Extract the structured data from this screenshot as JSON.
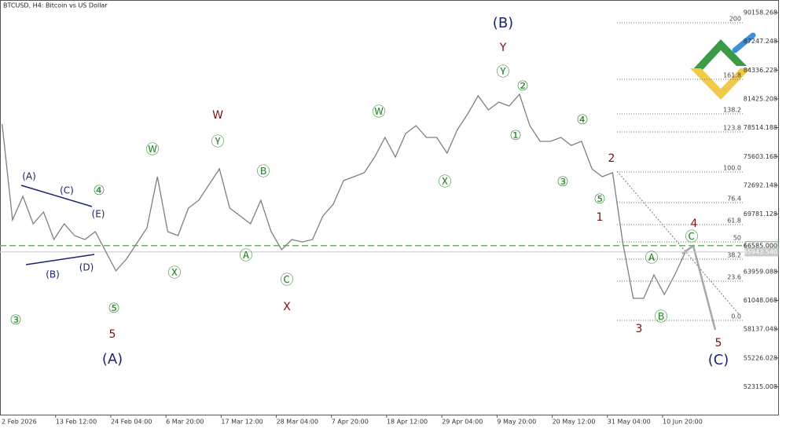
{
  "chart_data": {
    "type": "line",
    "title": "BTCUSD, H4:  Bitcoin vs US Dollar",
    "color": "#7f7f7f",
    "x": [
      "2026-02-03T04:00",
      "2026-02-05T04:00",
      "2026-02-07T04:00",
      "2026-02-09T04:00",
      "2026-02-11T04:00",
      "2026-02-13T04:00",
      "2026-02-15T04:00",
      "2026-02-17T04:00",
      "2026-02-19T04:00",
      "2026-02-21T04:00",
      "2026-02-23T04:00",
      "2026-02-25T04:00",
      "2026-02-27T04:00",
      "2026-03-01T04:00",
      "2026-03-03T04:00",
      "2026-03-05T04:00",
      "2026-03-07T04:00",
      "2026-03-09T04:00",
      "2026-03-11T04:00",
      "2026-03-13T04:00",
      "2026-03-15T04:00",
      "2026-03-17T04:00",
      "2026-03-19T04:00",
      "2026-03-21T04:00",
      "2026-03-23T04:00",
      "2026-03-25T04:00",
      "2026-03-27T04:00",
      "2026-03-29T04:00",
      "2026-03-31T04:00",
      "2026-04-02T04:00",
      "2026-04-04T04:00",
      "2026-04-06T04:00",
      "2026-04-08T04:00",
      "2026-04-10T04:00",
      "2026-04-12T04:00",
      "2026-04-14T04:00",
      "2026-04-16T04:00",
      "2026-04-18T04:00",
      "2026-04-20T04:00",
      "2026-04-22T04:00",
      "2026-04-24T04:00",
      "2026-04-26T04:00",
      "2026-04-28T04:00",
      "2026-04-30T04:00",
      "2026-05-02T04:00",
      "2026-05-04T04:00",
      "2026-05-06T04:00",
      "2026-05-08T04:00",
      "2026-05-10T04:00",
      "2026-05-12T04:00",
      "2026-05-14T04:00",
      "2026-05-16T04:00",
      "2026-05-18T04:00",
      "2026-05-20T04:00",
      "2026-05-22T04:00",
      "2026-05-24T04:00",
      "2026-05-26T04:00",
      "2026-05-28T04:00",
      "2026-05-30T04:00",
      "2026-06-01T04:00",
      "2026-06-03T04:00",
      "2026-06-05T04:00",
      "2026-06-07T04:00",
      "2026-06-09T04:00",
      "2026-06-11T04:00",
      "2026-06-13T04:00",
      "2026-06-15T04:00"
    ],
    "values": [
      78880,
      69190,
      71570,
      68790,
      69980,
      67200,
      68790,
      67600,
      67200,
      68000,
      66010,
      64030,
      65220,
      66810,
      68390,
      73560,
      68000,
      67600,
      70380,
      71170,
      72760,
      74350,
      70380,
      69590,
      68790,
      71170,
      68000,
      66170,
      67200,
      66960,
      67200,
      69590,
      70780,
      73160,
      73560,
      73960,
      75540,
      77530,
      75540,
      77930,
      78720,
      77530,
      77530,
      75940,
      78320,
      79910,
      81740,
      80310,
      81100,
      80710,
      81900,
      78720,
      77130,
      77130,
      77530,
      76730,
      77130,
      74350,
      73560,
      73960,
      66810,
      61250,
      61250,
      63630,
      61640,
      63630,
      65850
    ],
    "xlim": [
      "2026-02-02T18:00",
      "2026-07-03T04:00"
    ],
    "ylim": [
      49490,
      91430
    ],
    "yticks": [
      90158.268,
      87247.248,
      84336.228,
      81425.208,
      78514.188,
      75603.168,
      72692.148,
      69781.128,
      63959.088,
      61048.068,
      58137.048,
      55226.028,
      52315.008
    ],
    "xticks": [
      {
        "value": "2026-02-02T00:00",
        "label": "2 Feb 2026"
      },
      {
        "value": "2026-02-13T12:00",
        "label": "13 Feb 12:00"
      },
      {
        "value": "2026-02-24T04:00",
        "label": "24 Feb 04:00"
      },
      {
        "value": "2026-03-06T20:00",
        "label": "6 Mar 20:00"
      },
      {
        "value": "2026-03-17T12:00",
        "label": "17 Mar 12:00"
      },
      {
        "value": "2026-03-28T04:00",
        "label": "28 Mar 04:00"
      },
      {
        "value": "2026-04-07T20:00",
        "label": "7 Apr 20:00"
      },
      {
        "value": "2026-04-18T12:00",
        "label": "18 Apr 12:00"
      },
      {
        "value": "2026-04-29T04:00",
        "label": "29 Apr 04:00"
      },
      {
        "value": "2026-05-09T20:00",
        "label": "9 May 20:00"
      },
      {
        "value": "2026-05-20T12:00",
        "label": "20 May 12:00"
      },
      {
        "value": "2026-05-31T04:00",
        "label": "31 May 04:00"
      },
      {
        "value": "2026-06-10T20:00",
        "label": "10 Jun 20:00"
      }
    ],
    "hlines": [
      {
        "value": 66585,
        "label": "66585.000",
        "color": "#6db36d"
      },
      {
        "value": 65943.54,
        "label": "65943.540",
        "color": "#c8c8c8"
      }
    ],
    "fib_levels": [
      {
        "label": "200",
        "value": 89130
      },
      {
        "label": "161.8",
        "value": 83410
      },
      {
        "label": "138.2",
        "value": 79910
      },
      {
        "label": "123.8",
        "value": 78090
      },
      {
        "label": "100.0",
        "value": 74030
      },
      {
        "label": "76.4",
        "value": 70940
      },
      {
        "label": "61.8",
        "value": 68710
      },
      {
        "label": "50",
        "value": 66960
      },
      {
        "label": "38.2",
        "value": 65220
      },
      {
        "label": "23.6",
        "value": 62990
      },
      {
        "label": "0.0",
        "value": 59020
      }
    ],
    "annotations": [
      {
        "text": "③",
        "color": "#2e8b2e"
      },
      {
        "text": "④",
        "color": "#2e8b2e"
      },
      {
        "text": "⑤",
        "color": "#2e8b2e"
      },
      {
        "text": "Ⓦ",
        "color": "#2e8b2e"
      },
      {
        "text": "Ⓨ",
        "color": "#2e8b2e"
      },
      {
        "text": "Ⓑ",
        "color": "#2e8b2e"
      },
      {
        "text": "Ⓐ",
        "color": "#2e8b2e"
      },
      {
        "text": "Ⓧ",
        "color": "#2e8b2e"
      },
      {
        "text": "Ⓒ",
        "color": "#2e8b2e"
      },
      {
        "text": "Ⓦ",
        "color": "#2e8b2e"
      },
      {
        "text": "Ⓧ",
        "color": "#2e8b2e"
      },
      {
        "text": "Ⓨ",
        "color": "#2e8b2e"
      },
      {
        "text": "②",
        "color": "#2e8b2e"
      },
      {
        "text": "①",
        "color": "#2e8b2e"
      },
      {
        "text": "④",
        "color": "#2e8b2e"
      },
      {
        "text": "③",
        "color": "#2e8b2e"
      },
      {
        "text": "⑤",
        "color": "#2e8b2e"
      },
      {
        "text": "Ⓐ",
        "color": "#2e8b2e"
      },
      {
        "text": "Ⓑ",
        "color": "#2e8b2e"
      },
      {
        "text": "Ⓒ",
        "color": "#2e8b2e"
      },
      {
        "text": "W",
        "color": "#7a1010"
      },
      {
        "text": "Y",
        "color": "#7a1010"
      },
      {
        "text": "X",
        "color": "#7a1010"
      },
      {
        "text": "5",
        "color": "#7a1010"
      },
      {
        "text": "1",
        "color": "#7a1010"
      },
      {
        "text": "2",
        "color": "#7a1010"
      },
      {
        "text": "3",
        "color": "#7a1010"
      },
      {
        "text": "4",
        "color": "#7a1010"
      },
      {
        "text": "5",
        "color": "#7a1010"
      },
      {
        "text": "(B)",
        "color": "#1c2570"
      },
      {
        "text": "(A)",
        "color": "#1c2570"
      },
      {
        "text": "(C)",
        "color": "#1c2570"
      },
      {
        "text": "(A)",
        "color": "#1c2570"
      },
      {
        "text": "(C)",
        "color": "#1c2570"
      },
      {
        "text": "(E)",
        "color": "#1c2570"
      },
      {
        "text": "(B)",
        "color": "#1c2570"
      },
      {
        "text": "(D)",
        "color": "#1c2570"
      }
    ]
  }
}
